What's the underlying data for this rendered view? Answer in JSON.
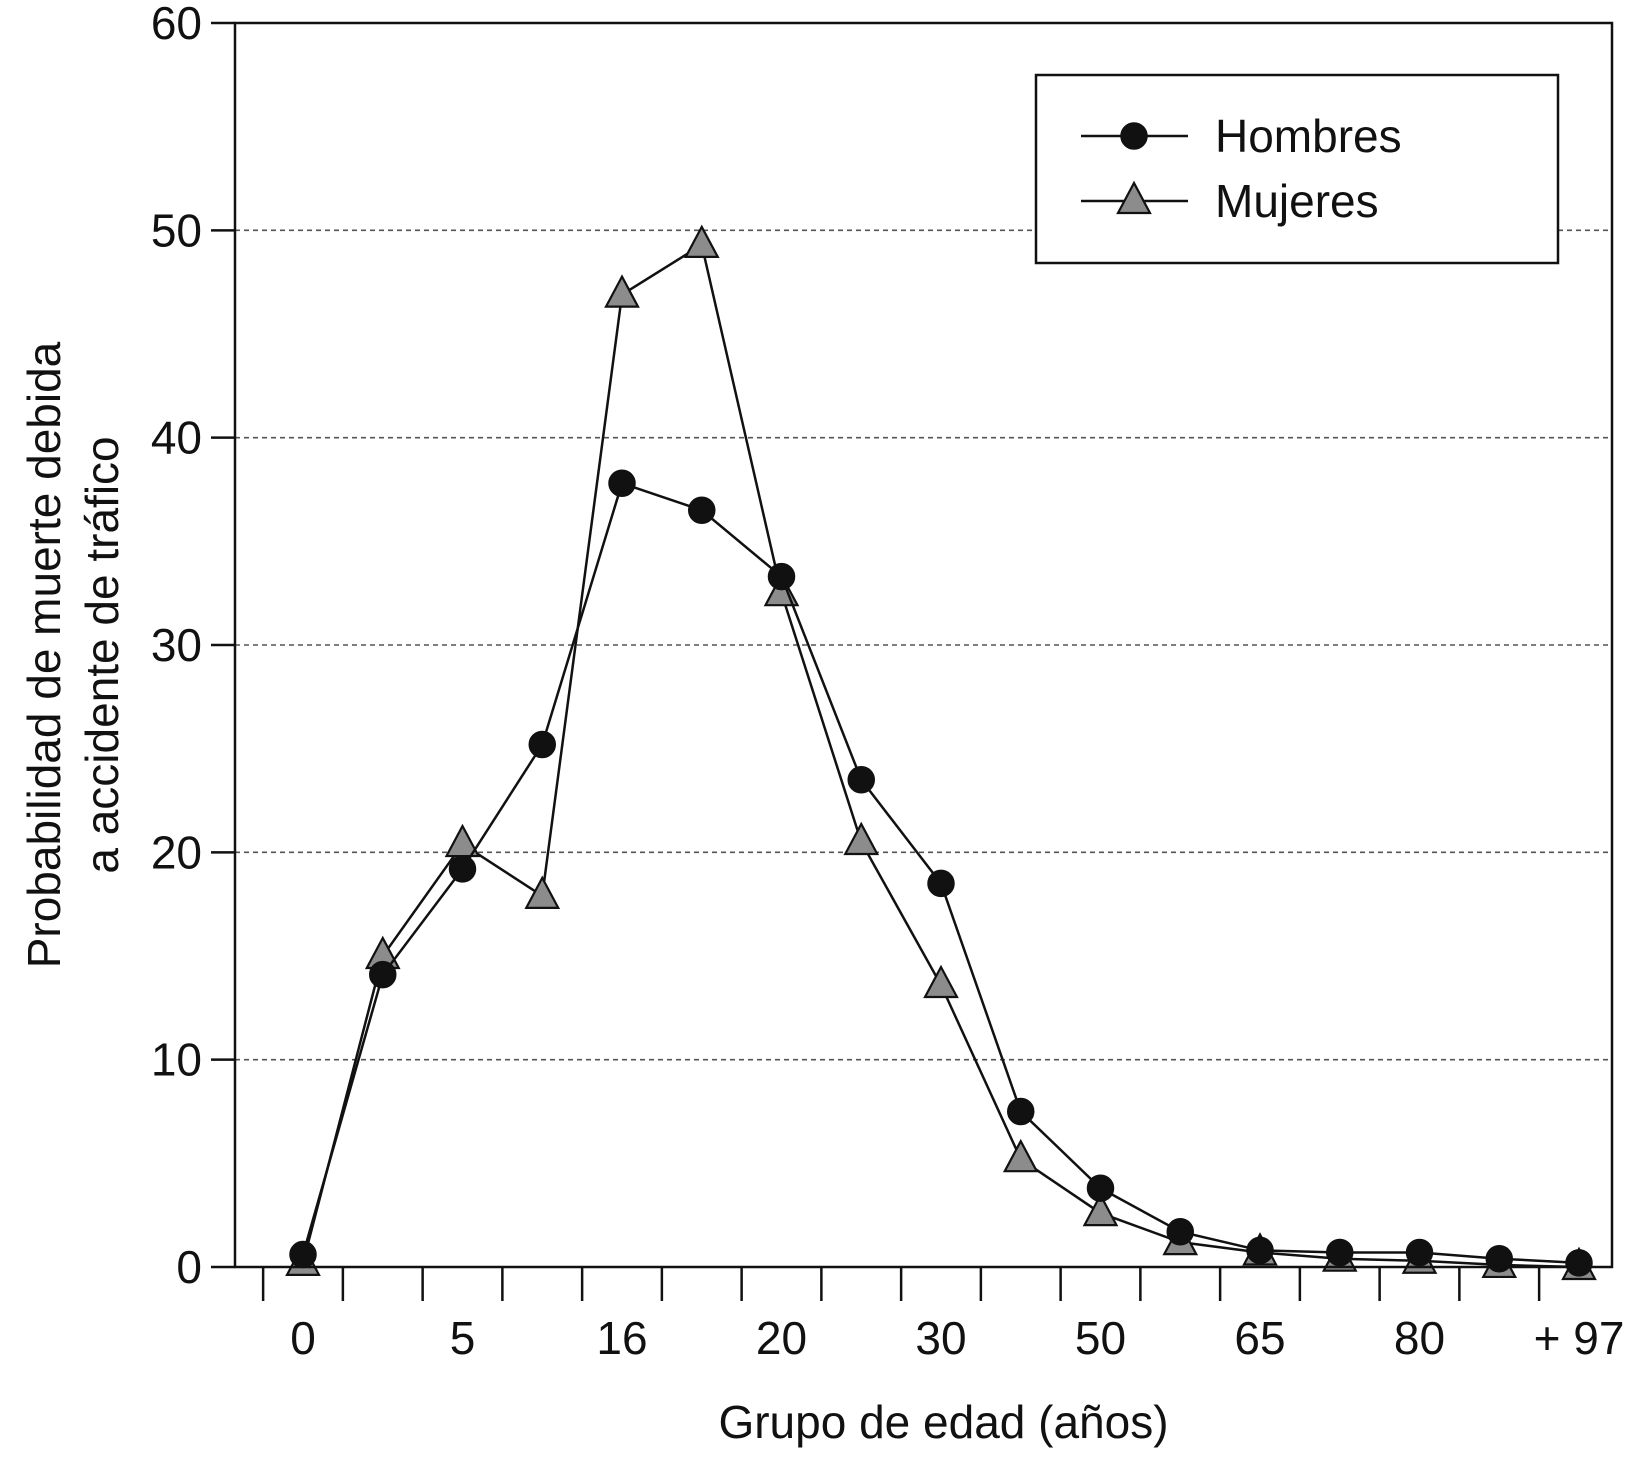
{
  "chart_data": {
    "type": "line",
    "title": "",
    "xlabel": "Grupo de edad (años)",
    "ylabel": [
      "Probabilidad de muerte debida",
      "a accidente de tráfico"
    ],
    "ylim": [
      0,
      60
    ],
    "yticks": [
      0,
      10,
      20,
      30,
      40,
      50,
      60
    ],
    "x_tick_labels": [
      {
        "pos": 0,
        "label": "0"
      },
      {
        "pos": 2,
        "label": "5"
      },
      {
        "pos": 4,
        "label": "16"
      },
      {
        "pos": 6,
        "label": "20"
      },
      {
        "pos": 8,
        "label": "30"
      },
      {
        "pos": 10,
        "label": "50"
      },
      {
        "pos": 12,
        "label": "65"
      },
      {
        "pos": 14,
        "label": "80"
      },
      {
        "pos": 16,
        "label": "+ 97"
      }
    ],
    "x_tick_marks": 17,
    "grid": {
      "y": true,
      "style": "dashed",
      "lines": [
        10,
        20,
        30,
        40,
        50
      ]
    },
    "legend": {
      "placement": "top-right"
    },
    "series": [
      {
        "name": "Hombres",
        "marker": "circle",
        "color": "#111111",
        "values": [
          0.6,
          14.1,
          19.2,
          25.2,
          37.8,
          36.5,
          33.3,
          23.5,
          18.5,
          7.5,
          3.8,
          1.7,
          0.8,
          0.7,
          0.7,
          0.4,
          0.2
        ]
      },
      {
        "name": "Mujeres",
        "marker": "triangle",
        "color": "#8c8c8c",
        "values": [
          0.2,
          15.0,
          20.4,
          17.9,
          46.9,
          49.3,
          32.5,
          20.5,
          13.6,
          5.2,
          2.6,
          1.2,
          0.7,
          0.4,
          0.3,
          0.1,
          0.0
        ]
      }
    ]
  }
}
